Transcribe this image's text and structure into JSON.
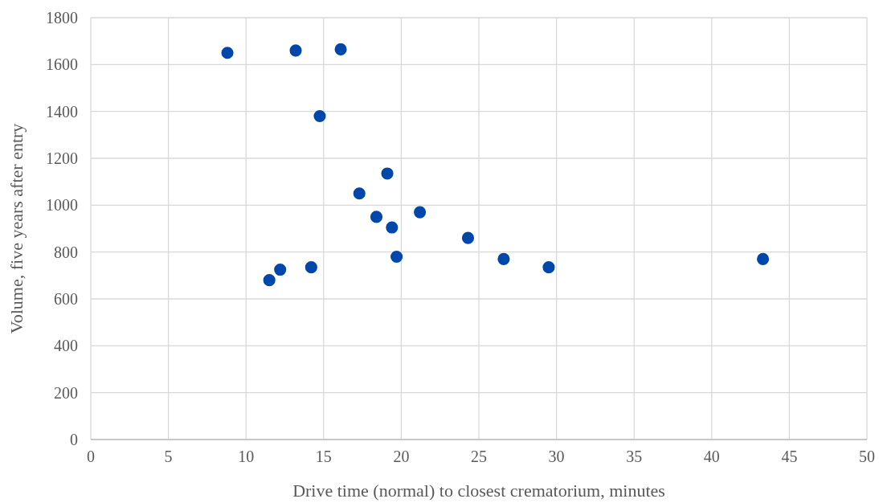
{
  "chart_data": {
    "type": "scatter",
    "xlabel": "Drive time (normal) to closest crematorium, minutes",
    "ylabel": "Volume, five years after entry",
    "x": [
      8.8,
      13.2,
      16.1,
      14.75,
      19.1,
      17.3,
      21.2,
      18.4,
      19.4,
      24.3,
      19.7,
      26.6,
      43.3,
      29.5,
      14.2,
      12.2,
      11.5
    ],
    "values": [
      1650,
      1660,
      1665,
      1380,
      1135,
      1050,
      970,
      950,
      905,
      860,
      780,
      770,
      770,
      735,
      735,
      725,
      680
    ],
    "color": "#0047ab",
    "marker": "circle",
    "grid": true,
    "xlim": [
      0,
      50
    ],
    "xticks": [
      0,
      5,
      10,
      15,
      20,
      25,
      30,
      35,
      40,
      45,
      50
    ],
    "ylim": [
      0,
      1800
    ],
    "yticks": [
      0,
      200,
      400,
      600,
      800,
      1000,
      1200,
      1400,
      1600,
      1800
    ]
  }
}
